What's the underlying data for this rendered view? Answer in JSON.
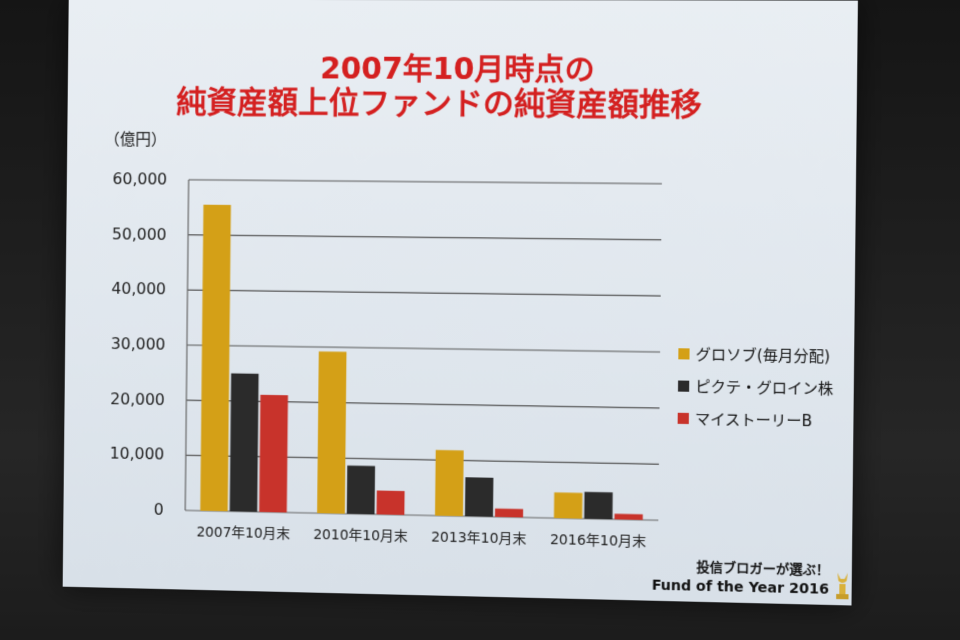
{
  "slide": {
    "title_line1": "2007年10月時点の",
    "title_line2": "純資産額上位ファンドの純資産額推移",
    "footer_line1": "投信ブロガーが選ぶ！",
    "footer_line2": "Fund of the Year 2016"
  },
  "chart_data": {
    "type": "bar",
    "title": "2007年10月時点の 純資産額上位ファンドの純資産額推移",
    "unit_label": "（億円）",
    "categories": [
      "2007年10月末",
      "2010年10月末",
      "2013年10月末",
      "2016年10月末"
    ],
    "series": [
      {
        "name": "グロソブ(毎月分配)",
        "color": "#d4a017",
        "values": [
          55500,
          29200,
          11800,
          4600
        ]
      },
      {
        "name": "ピクテ・グロイン株",
        "color": "#2b2b2b",
        "values": [
          25000,
          8700,
          7000,
          4800
        ]
      },
      {
        "name": "マイストーリーB",
        "color": "#c8332b",
        "values": [
          21200,
          4300,
          1500,
          1000
        ]
      }
    ],
    "ylim": [
      0,
      60000
    ],
    "yticks": [
      "0",
      "10,000",
      "20,000",
      "30,000",
      "40,000",
      "50,000",
      "60,000"
    ],
    "grid": true,
    "legend": "right"
  }
}
